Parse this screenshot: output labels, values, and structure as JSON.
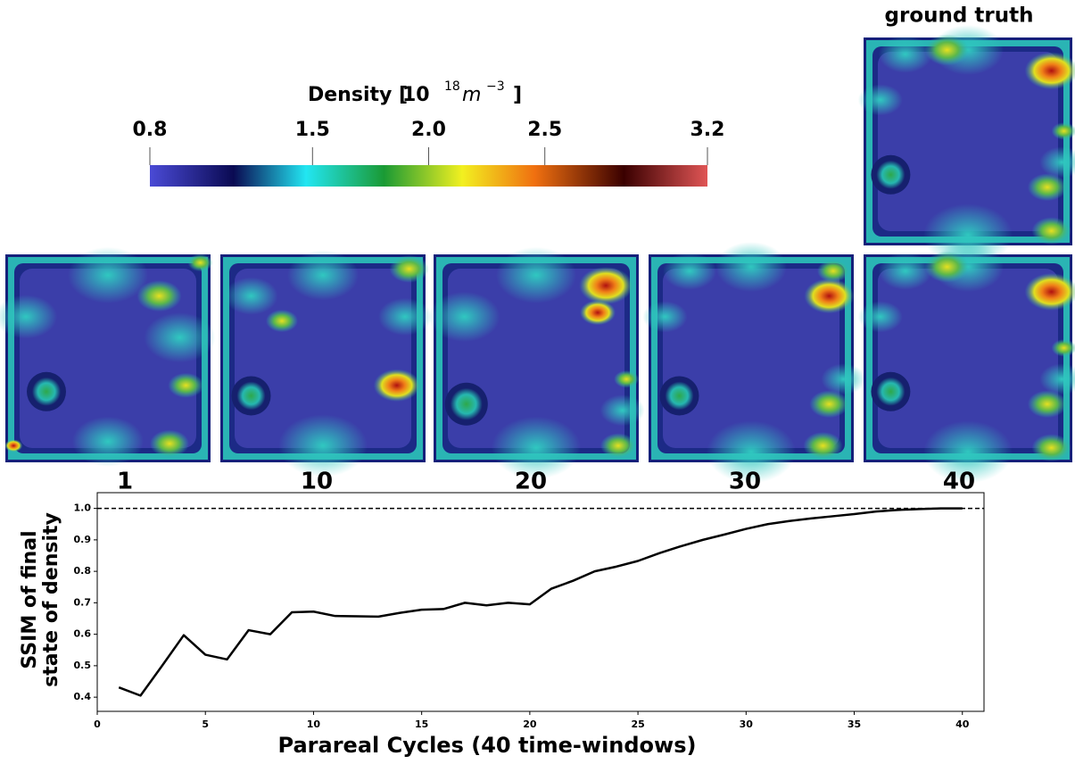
{
  "colorbar": {
    "label": "Density [",
    "unit_base": "10",
    "unit_exp": "18",
    "unit_var": "m",
    "unit_var_exp": "−3",
    "close": "]",
    "lim": [
      0.8,
      3.2
    ],
    "ticks": [
      0.8,
      1.5,
      {
        "value": 2,
        "label": "2.0"
      },
      2.5,
      3.2
    ]
  },
  "panels": {
    "ground_truth_label": "ground truth",
    "cycles": [
      1,
      10,
      20,
      30,
      40
    ]
  },
  "chart_data": {
    "type": "line",
    "x": [
      1,
      2,
      3,
      4,
      5,
      6,
      7,
      8,
      9,
      10,
      11,
      12,
      13,
      14,
      15,
      16,
      17,
      18,
      19,
      20,
      21,
      22,
      23,
      24,
      25,
      26,
      27,
      28,
      29,
      30,
      31,
      32,
      33,
      34,
      35,
      36,
      37,
      38,
      39,
      40
    ],
    "series": [
      {
        "color": "#000000",
        "values": [
          0.431,
          0.405,
          0.5,
          0.597,
          0.535,
          0.52,
          0.613,
          0.6,
          0.67,
          0.672,
          0.658,
          0.657,
          0.656,
          0.668,
          0.678,
          0.68,
          0.7,
          0.692,
          0.7,
          0.695,
          0.745,
          0.77,
          0.8,
          0.815,
          0.833,
          0.858,
          0.88,
          0.9,
          0.917,
          0.935,
          0.95,
          0.96,
          0.968,
          0.975,
          0.982,
          0.99,
          0.995,
          0.998,
          1,
          1
        ]
      }
    ],
    "reference_line": {
      "value": 1,
      "style": "dashed"
    },
    "x_label": "Parareal Cycles (40 time-windows)",
    "y_label": [
      "SSIM of final",
      "state of density"
    ],
    "xlim": [
      0,
      41
    ],
    "ylim": [
      0.355,
      1.05
    ],
    "xticks": [
      0,
      5,
      10,
      15,
      20,
      25,
      30,
      35,
      40
    ],
    "yticks": [
      0.4,
      0.5,
      0.6,
      0.7,
      0.8,
      0.9,
      {
        "value": 1,
        "label": "1.0"
      }
    ]
  }
}
